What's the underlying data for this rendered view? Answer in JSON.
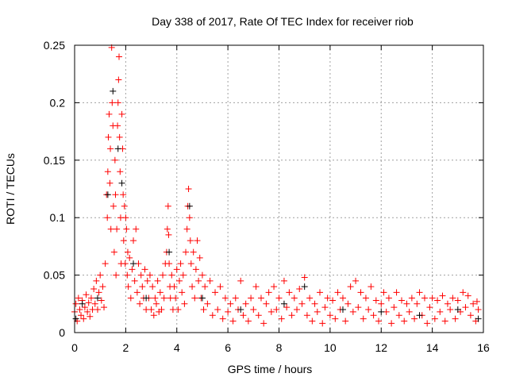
{
  "chart_data": {
    "type": "scatter",
    "title": "Day 338 of 2017, Rate Of TEC Index for receiver riob",
    "xlabel": "GPS time / hours",
    "ylabel": "ROTI / TECUs",
    "xlim": [
      0,
      16
    ],
    "ylim": [
      0,
      0.25
    ],
    "xticks": [
      0,
      2,
      4,
      6,
      8,
      10,
      12,
      14,
      16
    ],
    "xtick_labels": [
      "0",
      "2",
      "4",
      "6",
      "8",
      "10",
      "12",
      "14",
      "16"
    ],
    "yticks": [
      0,
      0.05,
      0.1,
      0.15,
      0.2,
      0.25
    ],
    "ytick_labels": [
      "0",
      "0.05",
      "0.1",
      "0.15",
      "0.2",
      "0.25"
    ],
    "grid": true,
    "marker": "plus",
    "series": [
      {
        "name": "black",
        "color": "#000000",
        "points": [
          [
            0.05,
            0.012
          ],
          [
            0.3,
            0.025
          ],
          [
            0.9,
            0.03
          ],
          [
            1.3,
            0.12
          ],
          [
            1.5,
            0.21
          ],
          [
            1.7,
            0.16
          ],
          [
            1.85,
            0.13
          ],
          [
            2.3,
            0.06
          ],
          [
            2.8,
            0.03
          ],
          [
            3.7,
            0.07
          ],
          [
            4.5,
            0.11
          ],
          [
            5.0,
            0.03
          ],
          [
            6.5,
            0.02
          ],
          [
            8.2,
            0.025
          ],
          [
            9.0,
            0.04
          ],
          [
            10.5,
            0.02
          ],
          [
            12.0,
            0.018
          ],
          [
            13.5,
            0.015
          ],
          [
            15.0,
            0.02
          ],
          [
            15.8,
            0.012
          ]
        ]
      },
      {
        "name": "red",
        "color": "#ff0000",
        "points": [
          [
            0.0,
            0.018
          ],
          [
            0.05,
            0.025
          ],
          [
            0.1,
            0.01
          ],
          [
            0.15,
            0.03
          ],
          [
            0.2,
            0.02
          ],
          [
            0.25,
            0.015
          ],
          [
            0.3,
            0.028
          ],
          [
            0.35,
            0.012
          ],
          [
            0.4,
            0.022
          ],
          [
            0.45,
            0.033
          ],
          [
            0.5,
            0.018
          ],
          [
            0.55,
            0.026
          ],
          [
            0.6,
            0.014
          ],
          [
            0.65,
            0.03
          ],
          [
            0.7,
            0.02
          ],
          [
            0.75,
            0.038
          ],
          [
            0.8,
            0.025
          ],
          [
            0.85,
            0.045
          ],
          [
            0.9,
            0.02
          ],
          [
            0.95,
            0.035
          ],
          [
            1.0,
            0.05
          ],
          [
            1.05,
            0.028
          ],
          [
            1.1,
            0.04
          ],
          [
            1.15,
            0.022
          ],
          [
            1.2,
            0.06
          ],
          [
            1.25,
            0.12
          ],
          [
            1.28,
            0.1
          ],
          [
            1.3,
            0.14
          ],
          [
            1.32,
            0.17
          ],
          [
            1.35,
            0.19
          ],
          [
            1.38,
            0.13
          ],
          [
            1.4,
            0.16
          ],
          [
            1.42,
            0.09
          ],
          [
            1.45,
            0.248
          ],
          [
            1.47,
            0.2
          ],
          [
            1.5,
            0.18
          ],
          [
            1.52,
            0.11
          ],
          [
            1.55,
            0.07
          ],
          [
            1.58,
            0.15
          ],
          [
            1.6,
            0.12
          ],
          [
            1.62,
            0.05
          ],
          [
            1.65,
            0.09
          ],
          [
            1.68,
            0.18
          ],
          [
            1.7,
            0.2
          ],
          [
            1.72,
            0.22
          ],
          [
            1.74,
            0.24
          ],
          [
            1.76,
            0.17
          ],
          [
            1.78,
            0.14
          ],
          [
            1.8,
            0.1
          ],
          [
            1.82,
            0.06
          ],
          [
            1.85,
            0.19
          ],
          [
            1.88,
            0.16
          ],
          [
            1.9,
            0.12
          ],
          [
            1.92,
            0.08
          ],
          [
            1.95,
            0.11
          ],
          [
            1.98,
            0.06
          ],
          [
            2.0,
            0.1
          ],
          [
            2.03,
            0.09
          ],
          [
            2.06,
            0.05
          ],
          [
            2.08,
            0.07
          ],
          [
            2.1,
            0.04
          ],
          [
            2.15,
            0.065
          ],
          [
            2.2,
            0.03
          ],
          [
            2.25,
            0.055
          ],
          [
            2.3,
            0.08
          ],
          [
            2.35,
            0.045
          ],
          [
            2.4,
            0.09
          ],
          [
            2.45,
            0.035
          ],
          [
            2.5,
            0.06
          ],
          [
            2.55,
            0.025
          ],
          [
            2.6,
            0.05
          ],
          [
            2.65,
            0.04
          ],
          [
            2.7,
            0.03
          ],
          [
            2.75,
            0.055
          ],
          [
            2.8,
            0.02
          ],
          [
            2.85,
            0.045
          ],
          [
            2.9,
            0.03
          ],
          [
            2.95,
            0.05
          ],
          [
            3.0,
            0.02
          ],
          [
            3.05,
            0.04
          ],
          [
            3.1,
            0.015
          ],
          [
            3.15,
            0.03
          ],
          [
            3.2,
            0.025
          ],
          [
            3.25,
            0.045
          ],
          [
            3.3,
            0.018
          ],
          [
            3.35,
            0.035
          ],
          [
            3.4,
            0.02
          ],
          [
            3.45,
            0.05
          ],
          [
            3.5,
            0.03
          ],
          [
            3.55,
            0.06
          ],
          [
            3.6,
            0.07
          ],
          [
            3.63,
            0.09
          ],
          [
            3.66,
            0.11
          ],
          [
            3.68,
            0.085
          ],
          [
            3.7,
            0.06
          ],
          [
            3.73,
            0.04
          ],
          [
            3.75,
            0.03
          ],
          [
            3.8,
            0.05
          ],
          [
            3.85,
            0.02
          ],
          [
            3.9,
            0.04
          ],
          [
            3.95,
            0.03
          ],
          [
            4.0,
            0.055
          ],
          [
            4.05,
            0.02
          ],
          [
            4.1,
            0.045
          ],
          [
            4.15,
            0.06
          ],
          [
            4.2,
            0.035
          ],
          [
            4.25,
            0.05
          ],
          [
            4.3,
            0.025
          ],
          [
            4.35,
            0.07
          ],
          [
            4.4,
            0.09
          ],
          [
            4.43,
            0.11
          ],
          [
            4.46,
            0.125
          ],
          [
            4.5,
            0.1
          ],
          [
            4.53,
            0.08
          ],
          [
            4.56,
            0.06
          ],
          [
            4.6,
            0.04
          ],
          [
            4.65,
            0.07
          ],
          [
            4.7,
            0.03
          ],
          [
            4.75,
            0.055
          ],
          [
            4.8,
            0.08
          ],
          [
            4.85,
            0.045
          ],
          [
            4.9,
            0.065
          ],
          [
            4.95,
            0.03
          ],
          [
            5.0,
            0.05
          ],
          [
            5.05,
            0.02
          ],
          [
            5.1,
            0.04
          ],
          [
            5.2,
            0.025
          ],
          [
            5.3,
            0.045
          ],
          [
            5.4,
            0.015
          ],
          [
            5.5,
            0.035
          ],
          [
            5.6,
            0.02
          ],
          [
            5.7,
            0.04
          ],
          [
            5.8,
            0.012
          ],
          [
            5.9,
            0.03
          ],
          [
            6.0,
            0.018
          ],
          [
            6.1,
            0.025
          ],
          [
            6.2,
            0.01
          ],
          [
            6.3,
            0.03
          ],
          [
            6.4,
            0.02
          ],
          [
            6.5,
            0.045
          ],
          [
            6.6,
            0.015
          ],
          [
            6.7,
            0.025
          ],
          [
            6.8,
            0.01
          ],
          [
            6.9,
            0.03
          ],
          [
            7.0,
            0.02
          ],
          [
            7.1,
            0.04
          ],
          [
            7.2,
            0.015
          ],
          [
            7.3,
            0.03
          ],
          [
            7.4,
            0.008
          ],
          [
            7.5,
            0.025
          ],
          [
            7.6,
            0.035
          ],
          [
            7.7,
            0.018
          ],
          [
            7.8,
            0.04
          ],
          [
            7.9,
            0.02
          ],
          [
            8.0,
            0.03
          ],
          [
            8.1,
            0.012
          ],
          [
            8.2,
            0.045
          ],
          [
            8.3,
            0.022
          ],
          [
            8.4,
            0.035
          ],
          [
            8.5,
            0.015
          ],
          [
            8.6,
            0.03
          ],
          [
            8.7,
            0.02
          ],
          [
            8.8,
            0.038
          ],
          [
            8.9,
            0.025
          ],
          [
            9.0,
            0.048
          ],
          [
            9.1,
            0.015
          ],
          [
            9.2,
            0.03
          ],
          [
            9.3,
            0.01
          ],
          [
            9.4,
            0.025
          ],
          [
            9.5,
            0.018
          ],
          [
            9.6,
            0.035
          ],
          [
            9.7,
            0.008
          ],
          [
            9.8,
            0.022
          ],
          [
            9.9,
            0.03
          ],
          [
            10.0,
            0.015
          ],
          [
            10.1,
            0.028
          ],
          [
            10.2,
            0.012
          ],
          [
            10.3,
            0.035
          ],
          [
            10.4,
            0.02
          ],
          [
            10.5,
            0.03
          ],
          [
            10.6,
            0.01
          ],
          [
            10.7,
            0.025
          ],
          [
            10.8,
            0.04
          ],
          [
            10.9,
            0.018
          ],
          [
            11.0,
            0.045
          ],
          [
            11.1,
            0.022
          ],
          [
            11.2,
            0.035
          ],
          [
            11.3,
            0.012
          ],
          [
            11.4,
            0.03
          ],
          [
            11.5,
            0.02
          ],
          [
            11.6,
            0.04
          ],
          [
            11.7,
            0.015
          ],
          [
            11.8,
            0.028
          ],
          [
            11.9,
            0.01
          ],
          [
            12.0,
            0.025
          ],
          [
            12.1,
            0.035
          ],
          [
            12.2,
            0.018
          ],
          [
            12.3,
            0.03
          ],
          [
            12.4,
            0.008
          ],
          [
            12.5,
            0.022
          ],
          [
            12.6,
            0.035
          ],
          [
            12.7,
            0.015
          ],
          [
            12.8,
            0.028
          ],
          [
            12.9,
            0.01
          ],
          [
            13.0,
            0.025
          ],
          [
            13.1,
            0.018
          ],
          [
            13.2,
            0.03
          ],
          [
            13.3,
            0.012
          ],
          [
            13.4,
            0.025
          ],
          [
            13.5,
            0.035
          ],
          [
            13.6,
            0.015
          ],
          [
            13.7,
            0.03
          ],
          [
            13.8,
            0.008
          ],
          [
            13.9,
            0.022
          ],
          [
            14.0,
            0.03
          ],
          [
            14.1,
            0.012
          ],
          [
            14.2,
            0.028
          ],
          [
            14.3,
            0.018
          ],
          [
            14.4,
            0.032
          ],
          [
            14.5,
            0.01
          ],
          [
            14.6,
            0.025
          ],
          [
            14.7,
            0.02
          ],
          [
            14.8,
            0.03
          ],
          [
            14.9,
            0.012
          ],
          [
            15.0,
            0.028
          ],
          [
            15.1,
            0.018
          ],
          [
            15.2,
            0.035
          ],
          [
            15.3,
            0.022
          ],
          [
            15.4,
            0.032
          ],
          [
            15.5,
            0.015
          ],
          [
            15.6,
            0.025
          ],
          [
            15.7,
            0.01
          ],
          [
            15.75,
            0.027
          ],
          [
            15.8,
            0.02
          ]
        ]
      }
    ]
  }
}
